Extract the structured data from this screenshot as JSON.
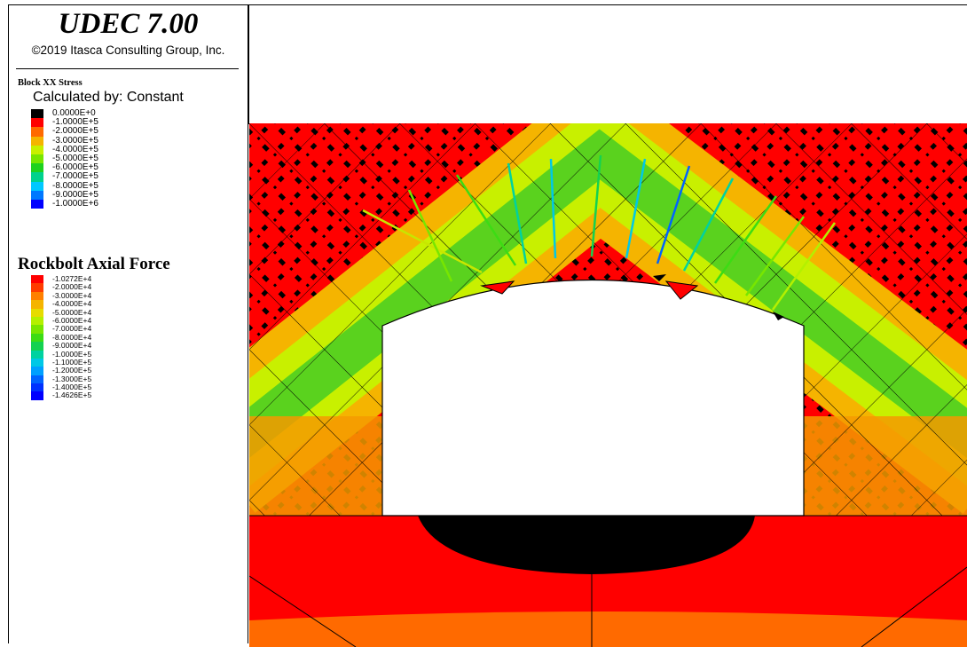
{
  "header": {
    "app_title": "UDEC 7.00",
    "copyright": "©2019 Itasca Consulting Group, Inc."
  },
  "block_stress_legend": {
    "title": "Block XX Stress",
    "calculated_by": "Calculated by: Constant",
    "items": [
      {
        "label": "0.0000E+0",
        "color": "#000000"
      },
      {
        "label": "-1.0000E+5",
        "color": "#ff0000"
      },
      {
        "label": "-2.0000E+5",
        "color": "#ff6a00"
      },
      {
        "label": "-3.0000E+5",
        "color": "#f5b400"
      },
      {
        "label": "-4.0000E+5",
        "color": "#c8f000"
      },
      {
        "label": "-5.0000E+5",
        "color": "#78e600"
      },
      {
        "label": "-6.0000E+5",
        "color": "#1ed21e"
      },
      {
        "label": "-7.0000E+5",
        "color": "#00d28c"
      },
      {
        "label": "-8.0000E+5",
        "color": "#00c8ff"
      },
      {
        "label": "-9.0000E+5",
        "color": "#0078ff"
      },
      {
        "label": "-1.0000E+6",
        "color": "#0000ff"
      }
    ]
  },
  "rockbolt_legend": {
    "title": "Rockbolt Axial Force",
    "items": [
      {
        "label": "-1.0272E+4",
        "color": "#ff0000"
      },
      {
        "label": "-2.0000E+4",
        "color": "#ff3c00"
      },
      {
        "label": "-3.0000E+4",
        "color": "#ff8000"
      },
      {
        "label": "-4.0000E+4",
        "color": "#f5b400"
      },
      {
        "label": "-5.0000E+4",
        "color": "#e6dc00"
      },
      {
        "label": "-6.0000E+4",
        "color": "#b4f000"
      },
      {
        "label": "-7.0000E+4",
        "color": "#78e600"
      },
      {
        "label": "-8.0000E+4",
        "color": "#3cdc14"
      },
      {
        "label": "-9.0000E+4",
        "color": "#14d250"
      },
      {
        "label": "-1.0000E+5",
        "color": "#00d2a0"
      },
      {
        "label": "-1.1000E+5",
        "color": "#00c8e6"
      },
      {
        "label": "-1.2000E+5",
        "color": "#00a0ff"
      },
      {
        "label": "-1.3000E+5",
        "color": "#0064ff"
      },
      {
        "label": "-1.4000E+5",
        "color": "#0032ff"
      },
      {
        "label": "-1.4626E+5",
        "color": "#0000ff"
      }
    ]
  },
  "model": {
    "rock_color": "#ff0000",
    "floor_zone_color": "#000000",
    "arch_band_color": "#f5b400",
    "opening_color": "#ffffff",
    "bolt_colors": [
      "#c8e600",
      "#78e600",
      "#3cdc14",
      "#00d2a0",
      "#00c8e6",
      "#14d250",
      "#00c8e6",
      "#0064ff",
      "#00d2a0",
      "#3cdc14",
      "#78e600",
      "#b4f000"
    ]
  }
}
